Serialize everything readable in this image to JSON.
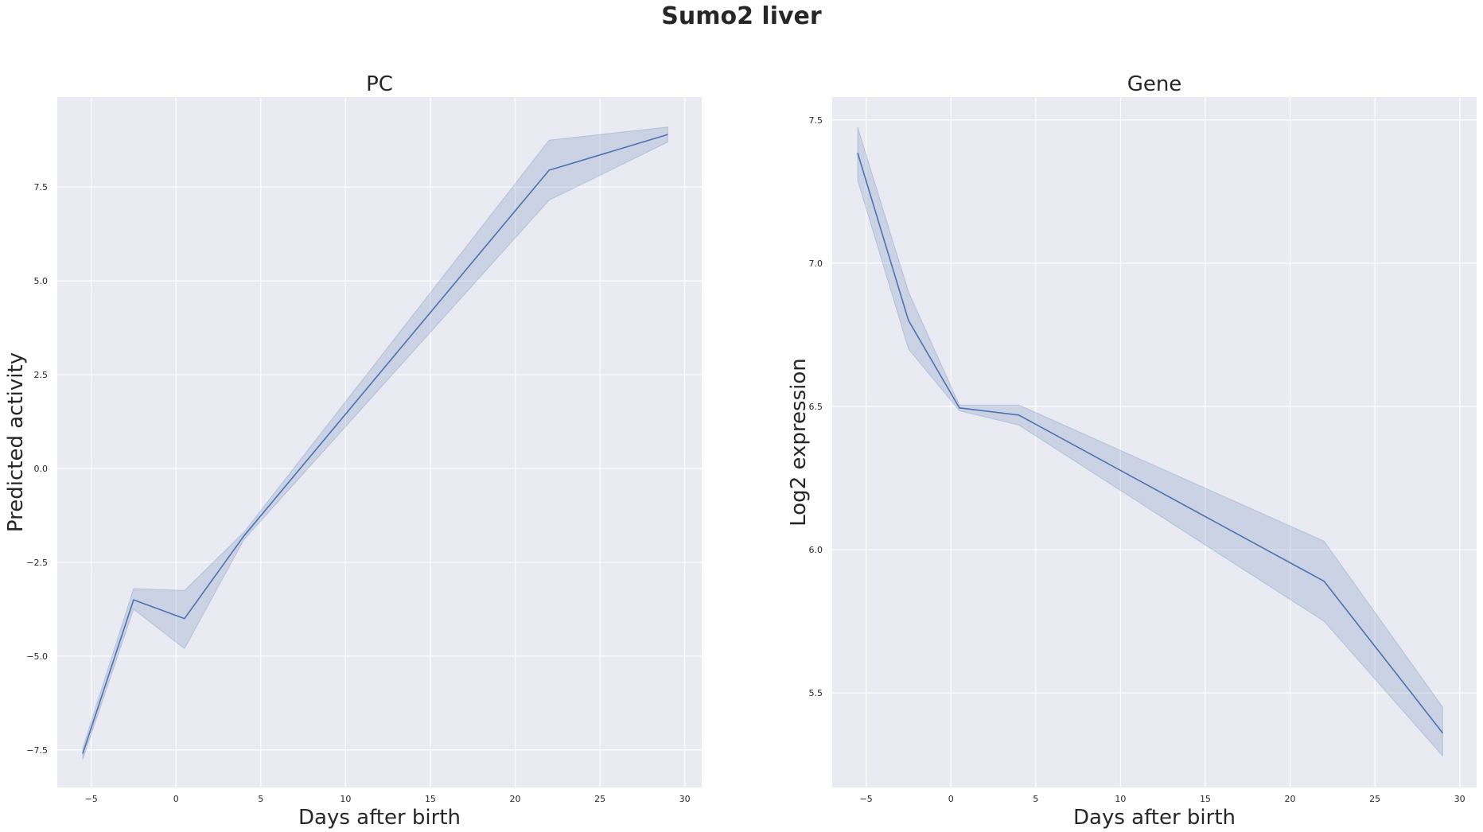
{
  "figure": {
    "suptitle": "Sumo2 liver"
  },
  "colors": {
    "panel_background": "#EAEAF2",
    "grid": "#ffffff",
    "line": "#4C72B0",
    "band": "#4C72B0"
  },
  "chart_data": [
    {
      "type": "line",
      "title": "PC",
      "xlabel": "Days after birth",
      "ylabel": "Predicted activity",
      "xlim": [
        -7,
        31
      ],
      "ylim": [
        -8.5,
        9.9
      ],
      "xticks": [
        -5,
        0,
        5,
        10,
        15,
        20,
        25,
        30
      ],
      "xtick_labels": [
        "−5",
        "0",
        "5",
        "10",
        "15",
        "20",
        "25",
        "30"
      ],
      "yticks": [
        -7.5,
        -5.0,
        -2.5,
        0.0,
        2.5,
        5.0,
        7.5
      ],
      "ytick_labels": [
        "−7.5",
        "−5.0",
        "−2.5",
        "0.0",
        "2.5",
        "5.0",
        "7.5"
      ],
      "grid": true,
      "series": [
        {
          "x": [
            -5.5,
            -2.5,
            0.5,
            4,
            22,
            29
          ],
          "y": [
            -7.6,
            -3.5,
            -4.0,
            -1.8,
            7.95,
            8.9
          ],
          "ci_lower": [
            -7.75,
            -3.75,
            -4.8,
            -1.9,
            7.15,
            8.7
          ],
          "ci_upper": [
            -7.45,
            -3.2,
            -3.25,
            -1.7,
            8.75,
            9.1
          ]
        }
      ]
    },
    {
      "type": "line",
      "title": "Gene",
      "xlabel": "Days after birth",
      "ylabel": "Log2 expression",
      "xlim": [
        -7,
        31
      ],
      "ylim": [
        5.17,
        7.58
      ],
      "xticks": [
        -5,
        0,
        5,
        10,
        15,
        20,
        25,
        30
      ],
      "xtick_labels": [
        "−5",
        "0",
        "5",
        "10",
        "15",
        "20",
        "25",
        "30"
      ],
      "yticks": [
        5.5,
        6.0,
        6.5,
        7.0,
        7.5
      ],
      "ytick_labels": [
        "5.5",
        "6.0",
        "6.5",
        "7.0",
        "7.5"
      ],
      "grid": true,
      "series": [
        {
          "x": [
            -5.5,
            -2.5,
            0.5,
            4,
            22,
            29
          ],
          "y": [
            7.385,
            6.8,
            6.495,
            6.47,
            5.89,
            5.36
          ],
          "ci_lower": [
            7.29,
            6.7,
            6.485,
            6.435,
            5.75,
            5.28
          ],
          "ci_upper": [
            7.475,
            6.9,
            6.505,
            6.505,
            6.03,
            5.45
          ]
        }
      ]
    }
  ]
}
